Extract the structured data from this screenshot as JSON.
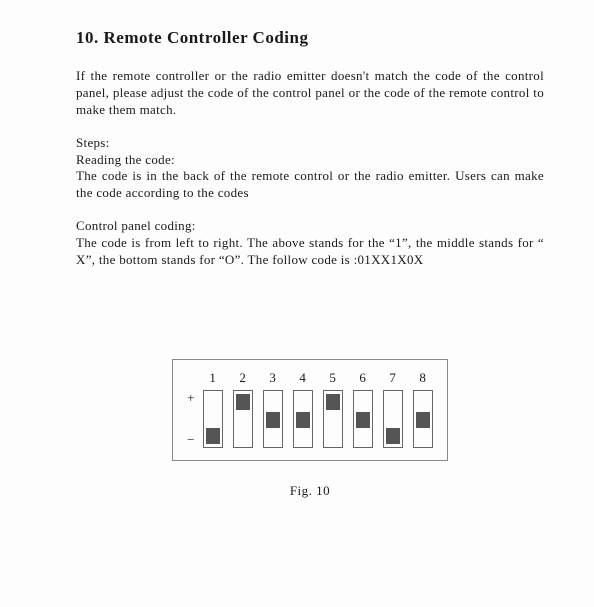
{
  "heading": "10. Remote Controller Coding",
  "para1": "If the remote controller or the radio emitter doesn't match the code of the control panel, please adjust the code of the control panel or the code of the remote control to make them match.",
  "steps_label": "Steps:",
  "reading_label": "Reading the code:",
  "reading_text": "The code is in the back of the remote control or the radio emitter. Users can make the code according to the codes",
  "cp_label": "Control panel coding:",
  "cp_text": "The code is from left to right. The above stands for the “1”, the middle stands for “ X”, the bottom stands for “O”. The follow code is :01XX1X0X",
  "plus": "+",
  "minus": "−",
  "caption": "Fig. 10",
  "switches": [
    {
      "num": "1",
      "pos": "bot"
    },
    {
      "num": "2",
      "pos": "top"
    },
    {
      "num": "3",
      "pos": "mid"
    },
    {
      "num": "4",
      "pos": "mid"
    },
    {
      "num": "5",
      "pos": "top"
    },
    {
      "num": "6",
      "pos": "mid"
    },
    {
      "num": "7",
      "pos": "bot"
    },
    {
      "num": "8",
      "pos": "mid"
    }
  ]
}
